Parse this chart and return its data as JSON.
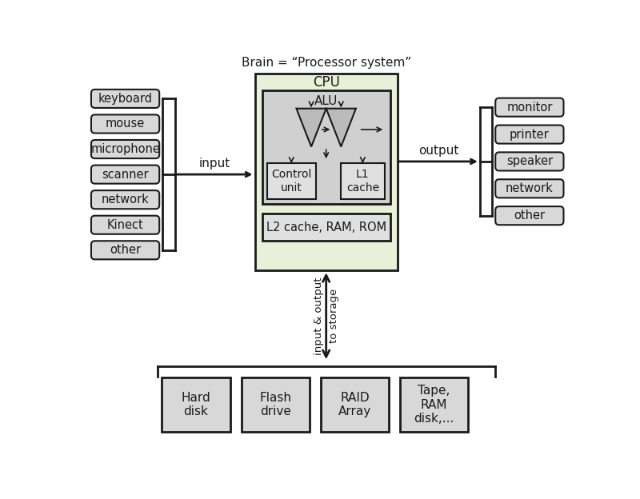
{
  "bg_color": "#ffffff",
  "input_devices": [
    "keyboard",
    "mouse",
    "microphone",
    "scanner",
    "network",
    "Kinect",
    "other"
  ],
  "output_devices": [
    "monitor",
    "printer",
    "speaker",
    "network",
    "other"
  ],
  "storage_devices": [
    "Hard\ndisk",
    "Flash\ndrive",
    "RAID\nArray",
    "Tape,\nRAM\ndisk,..."
  ],
  "cpu_label": "CPU",
  "processor_label": "Brain = “Processor system”",
  "alu_label": "ALU",
  "control_unit_label": "Control\nunit",
  "l1_cache_label": "L1\ncache",
  "l2_label": "L2 cache, RAM, ROM",
  "input_label": "input",
  "output_label": "output",
  "storage_label_left": "input & output",
  "storage_label_right": "to storage",
  "light_green": "#e8f0d8",
  "light_gray": "#d8d8d8",
  "inner_gray": "#d0d0d0",
  "sub_box_gray": "#e0e0e0",
  "dark_color": "#1a1a1a"
}
